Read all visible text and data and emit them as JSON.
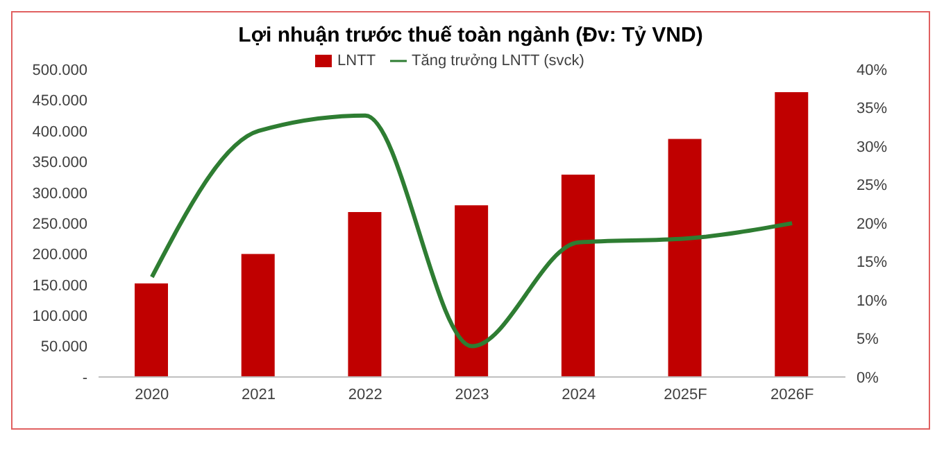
{
  "chart_data": {
    "type": "bar",
    "title": "Lợi nhuận trước thuế toàn ngành (Đv: Tỷ VND)",
    "categories": [
      "2020",
      "2021",
      "2022",
      "2023",
      "2024",
      "2025F",
      "2026F"
    ],
    "series": [
      {
        "name": "LNTT",
        "color": "#c00000",
        "values": [
          152000,
          200000,
          268000,
          279000,
          329000,
          387000,
          463000
        ]
      },
      {
        "name": "Tăng trưởng LNTT (svck)",
        "type": "line",
        "axis": "y2",
        "color": "#2e7d32",
        "values": [
          13,
          32,
          34,
          4,
          17.5,
          18,
          20
        ]
      }
    ],
    "ylim": [
      0,
      500000
    ],
    "yticks": [
      {
        "value": 0,
        "label": "-"
      },
      {
        "value": 50000,
        "label": "50.000"
      },
      {
        "value": 100000,
        "label": "100.000"
      },
      {
        "value": 150000,
        "label": "150.000"
      },
      {
        "value": 200000,
        "label": "200.000"
      },
      {
        "value": 250000,
        "label": "250.000"
      },
      {
        "value": 300000,
        "label": "300.000"
      },
      {
        "value": 350000,
        "label": "350.000"
      },
      {
        "value": 400000,
        "label": "400.000"
      },
      {
        "value": 450000,
        "label": "450.000"
      },
      {
        "value": 500000,
        "label": "500.000"
      }
    ],
    "y2lim": [
      0,
      40
    ],
    "y2ticks": [
      {
        "value": 0,
        "label": "0%"
      },
      {
        "value": 5,
        "label": "5%"
      },
      {
        "value": 10,
        "label": "10%"
      },
      {
        "value": 15,
        "label": "15%"
      },
      {
        "value": 20,
        "label": "20%"
      },
      {
        "value": 25,
        "label": "25%"
      },
      {
        "value": 30,
        "label": "30%"
      },
      {
        "value": 35,
        "label": "35%"
      },
      {
        "value": 40,
        "label": "40%"
      }
    ],
    "legend": "top",
    "grid": false,
    "marker": "none"
  }
}
